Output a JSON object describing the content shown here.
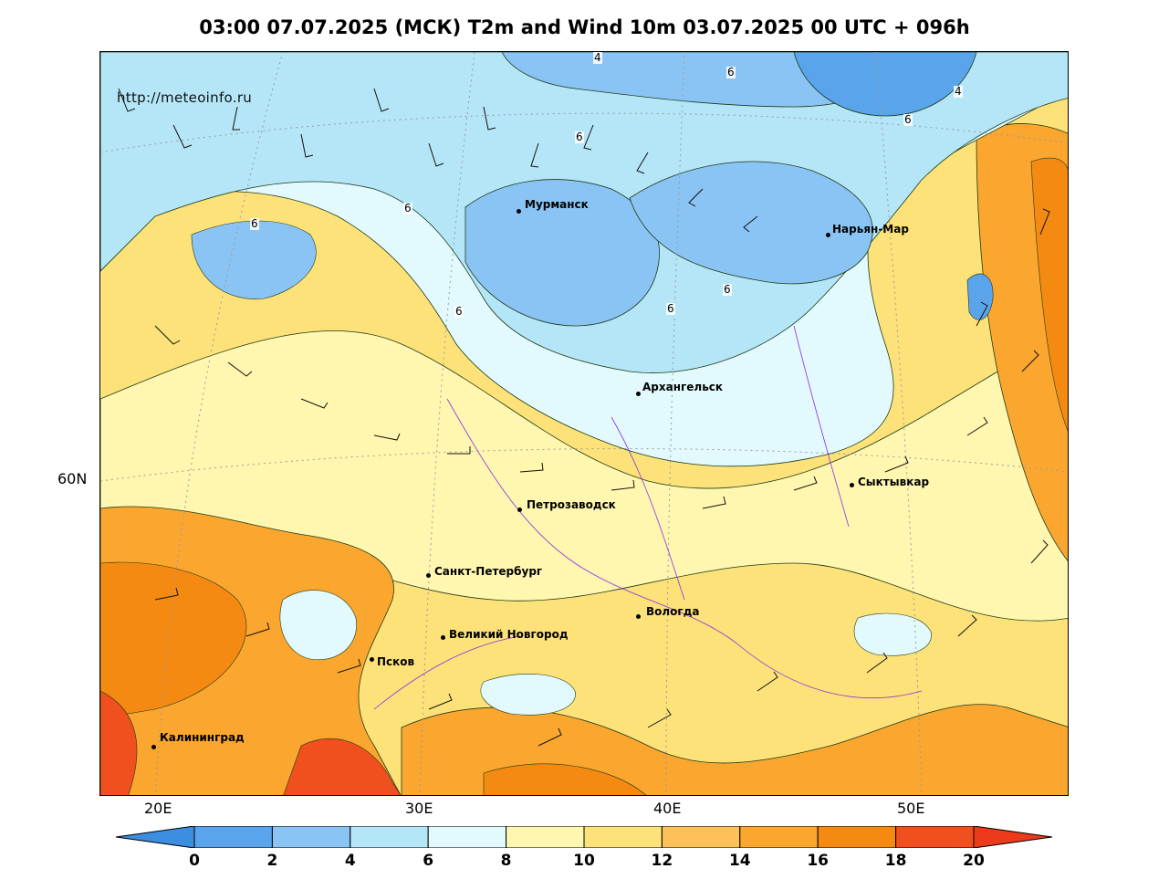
{
  "title": "03:00 07.07.2025 (МСК) T2m and Wind 10m 03.07.2025 00 UTC + 096h",
  "url": "http://meteoinfo.ru",
  "lat_label": "60N",
  "lon_labels": [
    "20E",
    "30E",
    "40E",
    "50E"
  ],
  "contour_labels": [
    "4",
    "6",
    "6",
    "4",
    "6",
    "6",
    "6",
    "6",
    "6",
    "6"
  ],
  "cities": [
    {
      "name": "Мурманск"
    },
    {
      "name": "Нарьян-Мар"
    },
    {
      "name": "Архангельск"
    },
    {
      "name": "Сыктывкар"
    },
    {
      "name": "Петрозаводск"
    },
    {
      "name": "Санкт-Петербург"
    },
    {
      "name": "Вологда"
    },
    {
      "name": "Великий Новгород"
    },
    {
      "name": "Псков"
    },
    {
      "name": "Калининград"
    }
  ],
  "colorbar": {
    "labels": [
      "0",
      "2",
      "4",
      "6",
      "8",
      "10",
      "12",
      "14",
      "16",
      "18",
      "20"
    ],
    "colors": [
      "#3b8ee0",
      "#5aa4ec",
      "#8ac4f5",
      "#b4e6f8",
      "#e2fafd",
      "#fff7b0",
      "#fde27a",
      "#fdc257",
      "#fba72f",
      "#f58a12",
      "#f0501e",
      "#ec3a1a"
    ]
  }
}
